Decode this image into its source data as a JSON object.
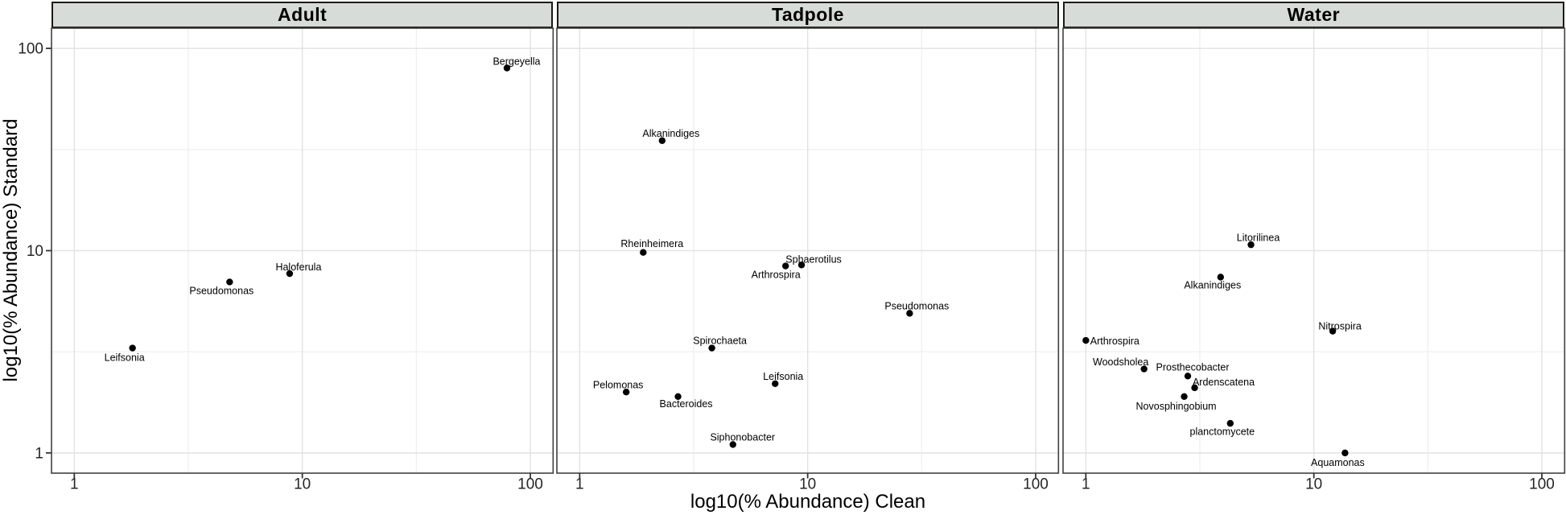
{
  "chart_data": {
    "type": "scatter",
    "title": "",
    "xlabel": "log10(% Abundance) Clean",
    "ylabel": "log10(% Abundance) Standard",
    "x_scale": "log10",
    "y_scale": "log10",
    "xlim": [
      1,
      100
    ],
    "ylim": [
      1,
      100
    ],
    "x_domain_log": [
      -0.1,
      2.1
    ],
    "y_domain_log": [
      -0.1,
      2.1
    ],
    "x_ticks": [
      1,
      10,
      100
    ],
    "y_ticks": [
      1,
      10,
      100
    ],
    "x_minor_breaks": [
      3.162,
      31.62
    ],
    "y_minor_breaks": [
      3.162,
      31.62
    ],
    "grid": true,
    "legend": false,
    "point_radius": 4.2,
    "panels": [
      {
        "title": "Adult",
        "points": [
          {
            "label": "Leifsonia",
            "x": 1.8,
            "y": 3.3,
            "label_offset": [
              -10,
              12
            ]
          },
          {
            "label": "Pseudomonas",
            "x": 4.8,
            "y": 7.0,
            "label_offset": [
              -10,
              11
            ]
          },
          {
            "label": "Haloferula",
            "x": 8.8,
            "y": 7.7,
            "label_offset": [
              11,
              -8
            ]
          },
          {
            "label": "Bergeyella",
            "x": 79,
            "y": 80,
            "label_offset": [
              12,
              -8
            ]
          }
        ]
      },
      {
        "title": "Tadpole",
        "points": [
          {
            "label": "Alkanindiges",
            "x": 2.3,
            "y": 35,
            "label_offset": [
              11,
              -9
            ]
          },
          {
            "label": "Rheinheimera",
            "x": 1.9,
            "y": 9.8,
            "label_offset": [
              11,
              -11
            ]
          },
          {
            "label": "Sphaerotilus",
            "x": 9.4,
            "y": 8.5,
            "label_offset": [
              15,
              -7
            ]
          },
          {
            "label": "Arthrospira",
            "x": 8.0,
            "y": 8.4,
            "label_offset": [
              -12,
              11
            ]
          },
          {
            "label": "Pseudomonas",
            "x": 28,
            "y": 4.9,
            "label_offset": [
              9,
              -9
            ]
          },
          {
            "label": "Spirochaeta",
            "x": 3.8,
            "y": 3.3,
            "label_offset": [
              10,
              -9
            ]
          },
          {
            "label": "Leifsonia",
            "x": 7.2,
            "y": 2.2,
            "label_offset": [
              10,
              -9
            ]
          },
          {
            "label": "Pelomonas",
            "x": 1.6,
            "y": 2.0,
            "label_offset": [
              -10,
              -9
            ]
          },
          {
            "label": "Bacteroides",
            "x": 2.7,
            "y": 1.9,
            "label_offset": [
              10,
              9
            ]
          },
          {
            "label": "Siphonobacter",
            "x": 4.7,
            "y": 1.1,
            "label_offset": [
              12,
              -9
            ]
          }
        ]
      },
      {
        "title": "Water",
        "points": [
          {
            "label": "Litorilinea",
            "x": 5.3,
            "y": 10.7,
            "label_offset": [
              9,
              -9
            ]
          },
          {
            "label": "Alkanindiges",
            "x": 3.9,
            "y": 7.4,
            "label_offset": [
              -10,
              10
            ]
          },
          {
            "label": "Nitrospira",
            "x": 12.1,
            "y": 4.0,
            "label_offset": [
              9,
              -6
            ]
          },
          {
            "label": "Arthrospira",
            "x": 1.0,
            "y": 3.6,
            "label_offset": [
              36,
              1
            ]
          },
          {
            "label": "Woodsholea",
            "x": 1.8,
            "y": 2.6,
            "label_offset": [
              -29,
              -9
            ]
          },
          {
            "label": "Prosthecobacter",
            "x": 2.8,
            "y": 2.4,
            "label_offset": [
              6,
              -11
            ]
          },
          {
            "label": "Ardenscatena",
            "x": 3.0,
            "y": 2.1,
            "label_offset": [
              36,
              -7
            ]
          },
          {
            "label": "Novosphingobium",
            "x": 2.7,
            "y": 1.9,
            "label_offset": [
              -10,
              12
            ]
          },
          {
            "label": "planctomycete",
            "x": 4.3,
            "y": 1.4,
            "label_offset": [
              -10,
              10
            ]
          },
          {
            "label": "Aquamonas",
            "x": 13.7,
            "y": 1.0,
            "label_offset": [
              -9,
              12
            ]
          }
        ]
      }
    ],
    "colors": {
      "strip_fill": "#d7dcd8",
      "strip_border": "#1a1a1a",
      "panel_border": "#404040",
      "panel_bg": "#ffffff",
      "grid_major": "#e2e2e2",
      "grid_minor": "#eeeeee",
      "point": "#000000",
      "tick_mark": "#333333",
      "tick_label": "#262626",
      "label_text": "#000000"
    }
  }
}
